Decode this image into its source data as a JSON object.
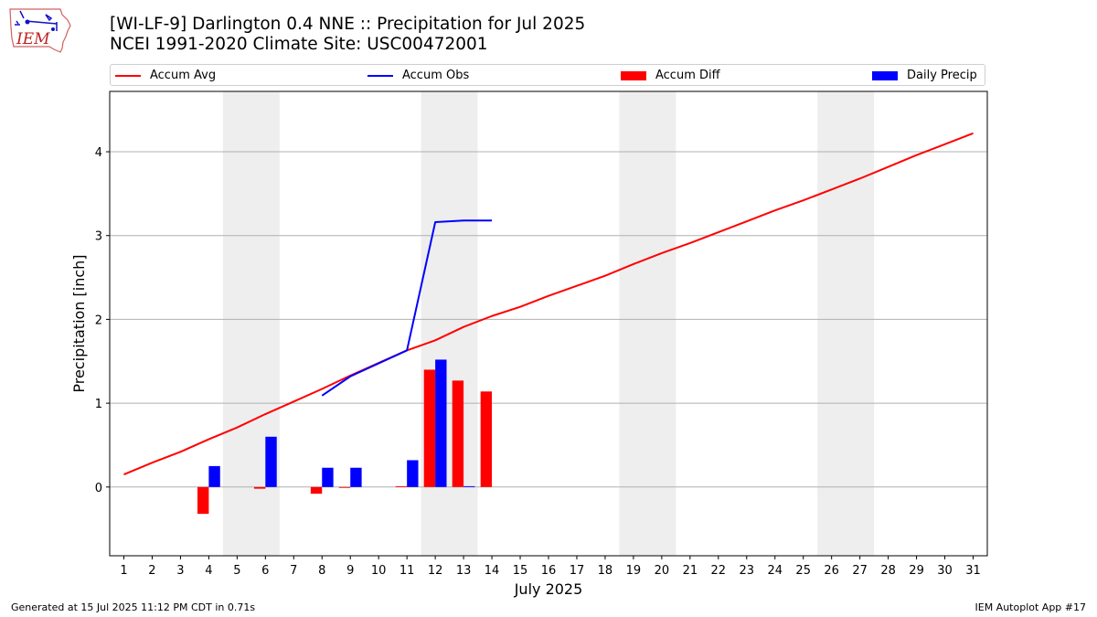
{
  "header": {
    "logo_text": "IEM",
    "title_line1": "[WI-LF-9] Darlington 0.4 NNE :: Precipitation for Jul 2025",
    "title_line2": "NCEI 1991-2020 Climate Site: USC00472001"
  },
  "legend": {
    "avg_label": "Accum Avg",
    "obs_label": "Accum Obs",
    "diff_label": "Accum Diff",
    "daily_label": "Daily Precip"
  },
  "footer": {
    "generated": "Generated at 15 Jul 2025 11:12 PM CDT in 0.71s",
    "app": "IEM Autoplot App #17"
  },
  "colors": {
    "avg": "#ff0000",
    "obs": "#0000ff",
    "diff": "#ff0000",
    "daily": "#0000ff",
    "weekend": "#eeeeee",
    "grid": "#b0b0b0"
  },
  "chart_data": {
    "type": "bar",
    "xlabel": "July 2025",
    "ylabel": "Precipitation [inch]",
    "xlim": [
      0.5,
      31.5
    ],
    "ylim": [
      -0.82,
      4.72
    ],
    "y_ticks": [
      0,
      1,
      2,
      3,
      4
    ],
    "x_ticks": [
      1,
      2,
      3,
      4,
      5,
      6,
      7,
      8,
      9,
      10,
      11,
      12,
      13,
      14,
      15,
      16,
      17,
      18,
      19,
      20,
      21,
      22,
      23,
      24,
      25,
      26,
      27,
      28,
      29,
      30,
      31
    ],
    "grid": "y",
    "legend_position": "top",
    "weekend_days": [
      5,
      6,
      12,
      13,
      19,
      20,
      26,
      27
    ],
    "series": [
      {
        "name": "Accum Avg",
        "kind": "line",
        "x": [
          1,
          2,
          3,
          4,
          5,
          6,
          7,
          8,
          9,
          10,
          11,
          12,
          13,
          14,
          15,
          16,
          17,
          18,
          19,
          20,
          21,
          22,
          23,
          24,
          25,
          26,
          27,
          28,
          29,
          30,
          31
        ],
        "values": [
          0.15,
          0.29,
          0.42,
          0.57,
          0.71,
          0.87,
          1.02,
          1.17,
          1.33,
          1.48,
          1.63,
          1.75,
          1.91,
          2.04,
          2.15,
          2.28,
          2.4,
          2.52,
          2.66,
          2.79,
          2.91,
          3.04,
          3.17,
          3.3,
          3.42,
          3.55,
          3.68,
          3.82,
          3.96,
          4.09,
          4.22
        ]
      },
      {
        "name": "Accum Obs",
        "kind": "line",
        "x": [
          8,
          9,
          11,
          12,
          13,
          14
        ],
        "values": [
          1.09,
          1.32,
          1.63,
          3.16,
          3.18,
          3.18
        ]
      },
      {
        "name": "Accum Diff",
        "kind": "bar",
        "x": [
          4,
          6,
          8,
          9,
          11,
          12,
          13,
          14
        ],
        "values": [
          -0.32,
          -0.02,
          -0.08,
          -0.01,
          0.01,
          1.4,
          1.27,
          1.14
        ]
      },
      {
        "name": "Daily Precip",
        "kind": "bar",
        "x": [
          4,
          6,
          8,
          9,
          11,
          12,
          13
        ],
        "values": [
          0.25,
          0.6,
          0.23,
          0.23,
          0.32,
          1.52,
          0.01
        ]
      }
    ]
  }
}
